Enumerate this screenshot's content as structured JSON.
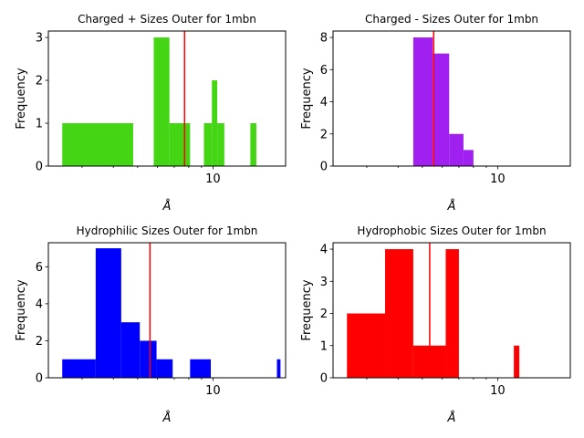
{
  "chart_data": [
    {
      "type": "bar",
      "title": "Charged + Sizes Outer for 1mbn",
      "xlabel": "Å",
      "ylabel": "Frequency",
      "xscale": "log",
      "xlim": [
        2.2,
        19.5
      ],
      "ylim": [
        0,
        3.15
      ],
      "yticks": [
        0,
        1,
        2,
        3
      ],
      "xticks": [
        {
          "value": 10,
          "label": "10"
        }
      ],
      "color": "#44d614",
      "marker_line": {
        "x": 7.7,
        "color": "#ff0000"
      },
      "bins": [
        {
          "x0": 2.5,
          "x1": 4.8,
          "count": 1
        },
        {
          "x0": 5.8,
          "x1": 6.7,
          "count": 3
        },
        {
          "x0": 6.7,
          "x1": 8.1,
          "count": 1
        },
        {
          "x0": 9.2,
          "x1": 9.9,
          "count": 1
        },
        {
          "x0": 9.9,
          "x1": 10.4,
          "count": 2
        },
        {
          "x0": 10.4,
          "x1": 11.1,
          "count": 1
        },
        {
          "x0": 14.1,
          "x1": 14.9,
          "count": 1
        }
      ]
    },
    {
      "type": "bar",
      "title": "Charged - Sizes Outer for 1mbn",
      "xlabel": "Å",
      "ylabel": "Frequency",
      "xscale": "log",
      "xlim": [
        2.2,
        19.5
      ],
      "ylim": [
        0,
        8.4
      ],
      "yticks": [
        0,
        2,
        4,
        6,
        8
      ],
      "xticks": [
        {
          "value": 10,
          "label": "10"
        }
      ],
      "color": "#a020f0",
      "marker_line": {
        "x": 5.55,
        "color": "#ff0000"
      },
      "bins": [
        {
          "x0": 4.6,
          "x1": 5.5,
          "count": 8
        },
        {
          "x0": 5.5,
          "x1": 6.4,
          "count": 7
        },
        {
          "x0": 6.4,
          "x1": 7.3,
          "count": 2
        },
        {
          "x0": 7.3,
          "x1": 8.0,
          "count": 1
        }
      ]
    },
    {
      "type": "bar",
      "title": "Hydrophilic Sizes Outer for 1mbn",
      "xlabel": "Å",
      "ylabel": "Frequency",
      "xscale": "log",
      "xlim": [
        2.2,
        19.5
      ],
      "ylim": [
        0,
        7.3
      ],
      "yticks": [
        0,
        2,
        4,
        6
      ],
      "xticks": [
        {
          "value": 10,
          "label": "10"
        }
      ],
      "color": "#0000ff",
      "marker_line": {
        "x": 5.6,
        "color": "#ff0000"
      },
      "bins": [
        {
          "x0": 2.5,
          "x1": 3.4,
          "count": 1
        },
        {
          "x0": 3.4,
          "x1": 4.3,
          "count": 7
        },
        {
          "x0": 4.3,
          "x1": 5.1,
          "count": 3
        },
        {
          "x0": 5.1,
          "x1": 5.95,
          "count": 2
        },
        {
          "x0": 5.95,
          "x1": 6.9,
          "count": 1
        },
        {
          "x0": 8.1,
          "x1": 9.8,
          "count": 1
        },
        {
          "x0": 18.0,
          "x1": 18.6,
          "count": 1
        }
      ]
    },
    {
      "type": "bar",
      "title": "Hydrophobic Sizes Outer for 1mbn",
      "xlabel": "Å",
      "ylabel": "Frequency",
      "xscale": "log",
      "xlim": [
        2.2,
        19.5
      ],
      "ylim": [
        0,
        4.2
      ],
      "yticks": [
        0,
        1,
        2,
        3,
        4
      ],
      "xticks": [
        {
          "value": 10,
          "label": "10"
        }
      ],
      "color": "#ff0000",
      "marker_line": {
        "x": 5.35,
        "color": "#ff0000"
      },
      "bins": [
        {
          "x0": 2.5,
          "x1": 3.55,
          "count": 2
        },
        {
          "x0": 3.55,
          "x1": 4.6,
          "count": 4
        },
        {
          "x0": 4.6,
          "x1": 6.2,
          "count": 1
        },
        {
          "x0": 6.2,
          "x1": 7.0,
          "count": 4
        },
        {
          "x0": 11.6,
          "x1": 12.2,
          "count": 1
        }
      ]
    }
  ]
}
